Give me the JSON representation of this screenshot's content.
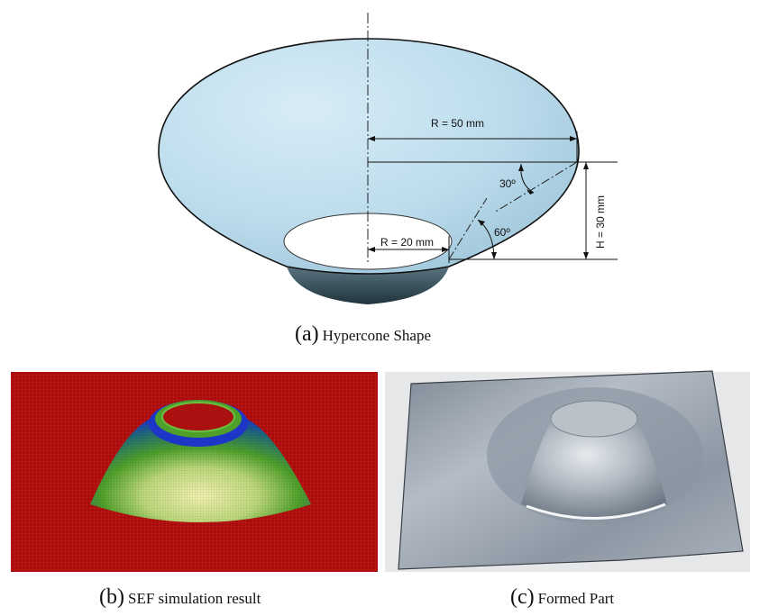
{
  "panel_a": {
    "dimensions": {
      "top_radius": "R = 50 mm",
      "bottom_radius": "R = 20 mm",
      "height": "H = 30 mm",
      "angle_top": "30º",
      "angle_bottom": "60º"
    },
    "caption_letter": "(a)",
    "caption_text": "Hypercone Shape"
  },
  "panel_b": {
    "caption_letter": "(b)",
    "caption_text": "SEF simulation result"
  },
  "panel_c": {
    "caption_letter": "(c)",
    "caption_text": "Formed Part"
  },
  "colors": {
    "cone_surface": "#bcdcec",
    "cone_base": "#2e4650",
    "sim_background": "#b01010",
    "sim_green": "#4fa02a",
    "sim_blue": "#1d36c8",
    "formed_part": "#9aa6b2"
  }
}
